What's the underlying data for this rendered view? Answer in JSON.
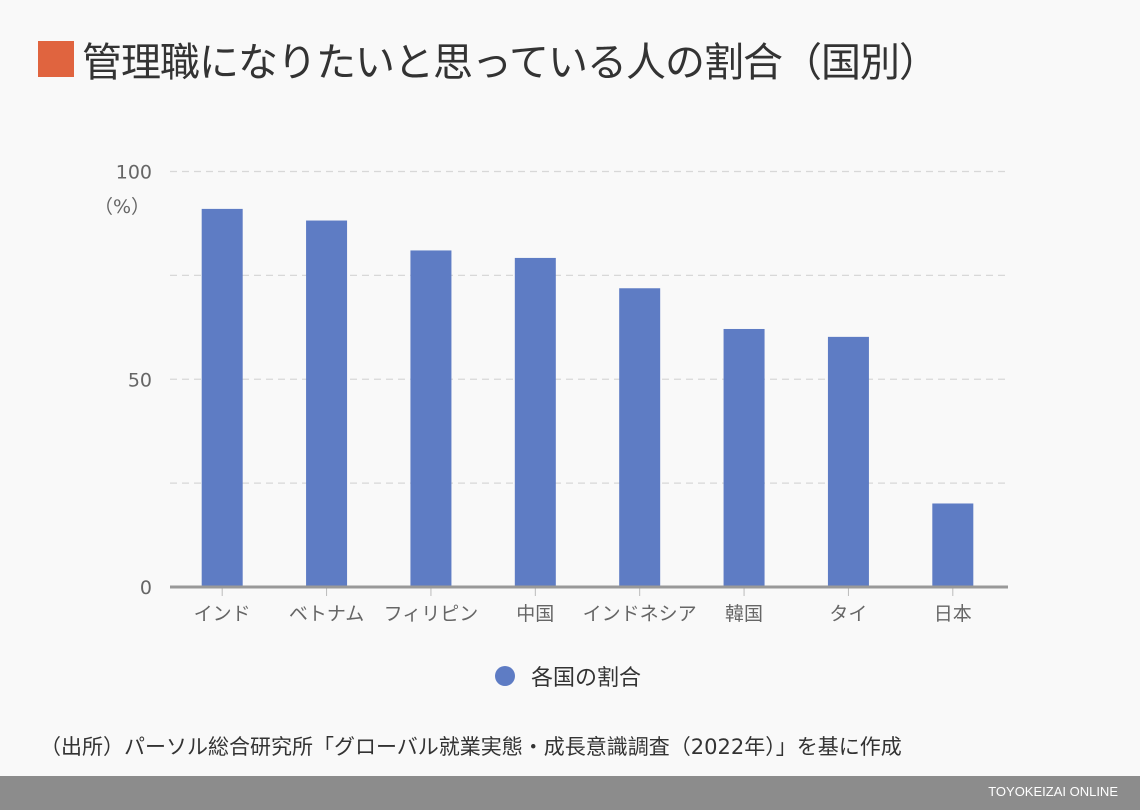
{
  "title": "管理職になりたいと思っている人の割合（国別）",
  "source": "（出所）パーソル総合研究所「グローバル就業実態・成長意識調査（2022年）」を基に作成",
  "footer": "TOYOKEIZAI ONLINE",
  "colors": {
    "bar": "#5e7cc4",
    "title_square": "#e0643f"
  },
  "chart_data": {
    "type": "bar",
    "title": "管理職になりたいと思っている人の割合（国別）",
    "categories": [
      "インド",
      "ベトナム",
      "フィリピン",
      "中国",
      "インドネシア",
      "韓国",
      "タイ",
      "日本"
    ],
    "series": [
      {
        "name": "各国の割合",
        "values": [
          91.0,
          88.2,
          81.0,
          79.2,
          71.9,
          62.1,
          60.2,
          20.1
        ]
      }
    ],
    "ylabel": "（%）",
    "ylim": [
      0,
      100
    ],
    "yticks": [
      "0",
      "50",
      "100"
    ],
    "grid": true,
    "legend": "bottom"
  }
}
